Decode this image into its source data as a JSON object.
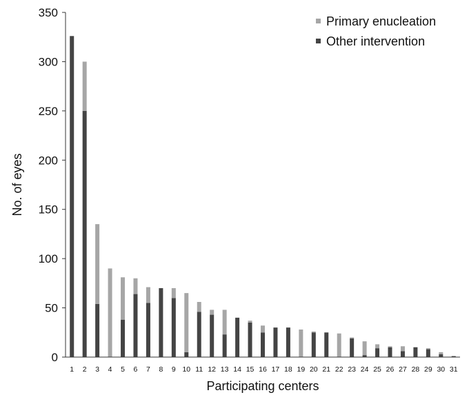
{
  "chart_data": {
    "type": "bar",
    "stacked": true,
    "xlabel": "Participating centers",
    "ylabel": "No. of eyes",
    "ylim": [
      0,
      350
    ],
    "yticks": [
      0,
      50,
      100,
      150,
      200,
      250,
      300,
      350
    ],
    "grid": false,
    "legend_position": "top-right",
    "categories": [
      "1",
      "2",
      "3",
      "4",
      "5",
      "6",
      "7",
      "8",
      "9",
      "10",
      "11",
      "12",
      "13",
      "14",
      "15",
      "16",
      "17",
      "18",
      "19",
      "20",
      "21",
      "22",
      "23",
      "24",
      "25",
      "26",
      "27",
      "28",
      "29",
      "30",
      "31"
    ],
    "series": [
      {
        "name": "Other intervention",
        "color": "#444444",
        "values": [
          326,
          250,
          54,
          0,
          38,
          64,
          55,
          70,
          60,
          5,
          46,
          43,
          23,
          40,
          35,
          25,
          30,
          30,
          0,
          25,
          25,
          0,
          19,
          2,
          9,
          10,
          6,
          10,
          8,
          3,
          1
        ]
      },
      {
        "name": "Primary enucleation",
        "color": "#a6a6a6",
        "values": [
          0,
          50,
          81,
          90,
          43,
          16,
          16,
          0,
          10,
          60,
          10,
          5,
          25,
          0,
          2,
          7,
          0,
          0,
          28,
          1,
          0,
          24,
          1,
          14,
          4,
          1,
          5,
          0,
          1,
          2,
          0
        ]
      }
    ]
  }
}
